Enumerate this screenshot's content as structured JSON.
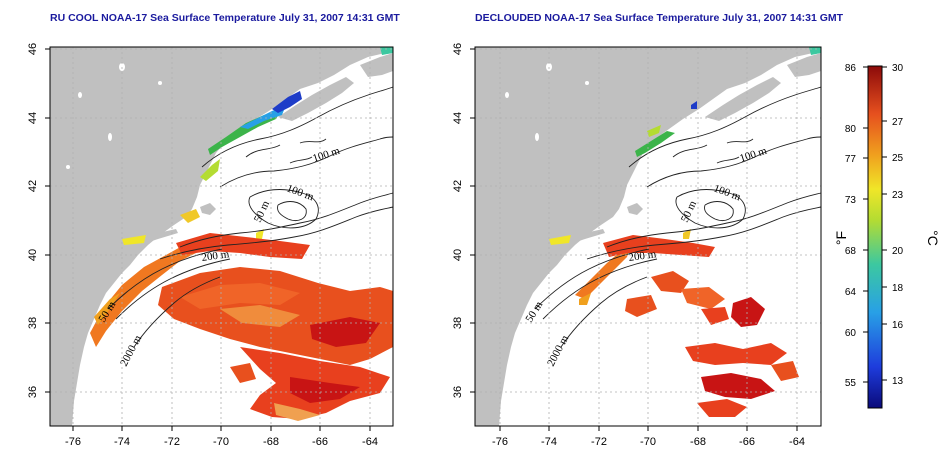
{
  "maps": [
    {
      "title": "RU COOL NOAA-17 Sea Surface Temperature July 31, 2007 14:31 GMT",
      "x_ticks": [
        "-76",
        "-74",
        "-72",
        "-70",
        "-68",
        "-66",
        "-64"
      ],
      "y_ticks": [
        "46",
        "44",
        "42",
        "40",
        "38",
        "36"
      ],
      "contour_labels": [
        "100 m",
        "100 m",
        "50 m",
        "200 m",
        "50 m",
        "2000 m"
      ],
      "coverage": "full"
    },
    {
      "title": "DECLOUDED NOAA-17 Sea Surface Temperature July 31, 2007 14:31 GMT",
      "x_ticks": [
        "-76",
        "-74",
        "-72",
        "-70",
        "-68",
        "-66",
        "-64"
      ],
      "y_ticks": [
        "46",
        "44",
        "42",
        "40",
        "38",
        "36"
      ],
      "contour_labels": [
        "100 m",
        "100 m",
        "50 m",
        "200 m",
        "50 m",
        "2000 m"
      ],
      "coverage": "declouded"
    }
  ],
  "colorbar": {
    "fahrenheit_ticks": [
      "86",
      "80",
      "77",
      "73",
      "68",
      "64",
      "60",
      "55"
    ],
    "celsius_ticks": [
      "30",
      "27",
      "25",
      "23",
      "20",
      "18",
      "16",
      "13"
    ],
    "fahrenheit_unit": "°F",
    "celsius_unit": "°C"
  },
  "colors": {
    "land": "#c0c0c0",
    "water": "#ffffff",
    "title": "#1a1a9e",
    "grid": "#b0b0b0",
    "sst_warm": "#e8401e",
    "sst_hot": "#c81414",
    "sst_mid": "#f07820",
    "sst_cool": "#3cb44a",
    "sst_cold": "#1e3cc8"
  }
}
